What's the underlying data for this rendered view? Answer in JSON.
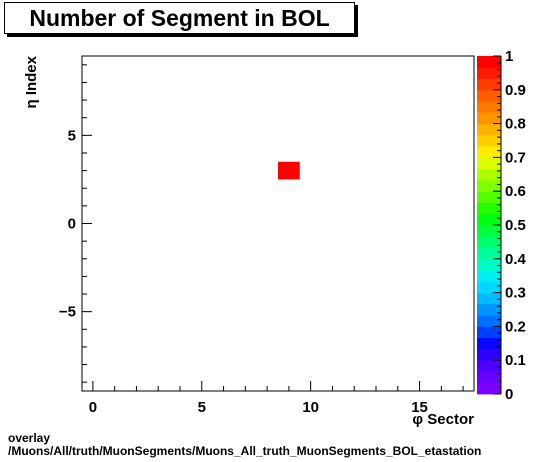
{
  "chart_data": {
    "type": "heatmap",
    "title": "Number of Segment in BOL",
    "xlabel": "φ Sector",
    "ylabel": "η Index",
    "xlim": [
      -0.5,
      17.5
    ],
    "ylim": [
      -9.5,
      9.5
    ],
    "x_ticks": [
      0,
      5,
      10,
      15
    ],
    "y_ticks": [
      -5,
      0,
      5
    ],
    "cells": [
      {
        "x": 9,
        "y": 3,
        "value": 1
      }
    ],
    "colorbar": {
      "range": [
        0,
        1
      ],
      "ticks": [
        "0",
        "0.1",
        "0.2",
        "0.3",
        "0.4",
        "0.5",
        "0.6",
        "0.7",
        "0.8",
        "0.9",
        "1"
      ],
      "colors": [
        "#7e00ff",
        "#6a00ff",
        "#5000ff",
        "#2e00ff",
        "#0a07ff",
        "#0040ff",
        "#0070ff",
        "#0095ff",
        "#00bbff",
        "#00d9ff",
        "#00f0f0",
        "#00fbc6",
        "#00ff9a",
        "#00ff6e",
        "#00ff3c",
        "#00ff10",
        "#25ff00",
        "#55ff00",
        "#80ff00",
        "#adff00",
        "#daff00",
        "#ffec00",
        "#ffcf00",
        "#ffb300",
        "#ff9600",
        "#ff7a00",
        "#ff5d00",
        "#ff3c00",
        "#ff1a00",
        "#ff0000"
      ]
    },
    "grid": false,
    "legend": "colorbar-right"
  },
  "footer": {
    "line1": "overlay",
    "line2": "/Muons/All/truth/MuonSegments/Muons_All_truth_MuonSegments_BOL_etastation"
  }
}
